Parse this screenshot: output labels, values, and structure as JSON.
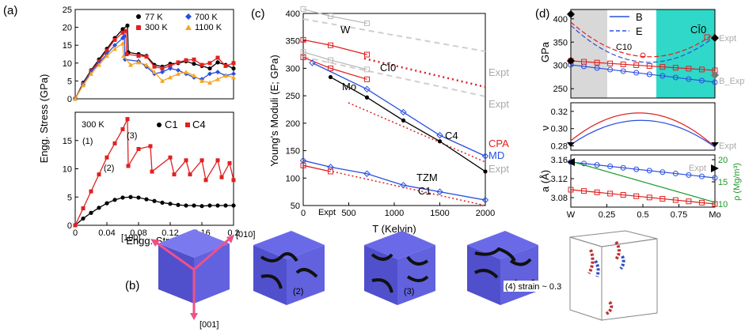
{
  "panels": {
    "a": "(a)",
    "b": "(b)",
    "c": "(c)",
    "d": "(d)"
  },
  "chart_data": [
    {
      "id": "a-top",
      "type": "line",
      "ylabel": "Engg. Stress (GPa)",
      "ylim": [
        0,
        25
      ],
      "yticks": [
        "0",
        "5",
        "10",
        "15",
        "20",
        "25"
      ],
      "xlim": [
        0,
        0.2
      ],
      "legend": [
        {
          "name": "77 K",
          "color": "#000000",
          "marker": "circle"
        },
        {
          "name": "700 K",
          "color": "#2a4fe0",
          "marker": "diamond"
        },
        {
          "name": "300 K",
          "color": "#e02020",
          "marker": "square"
        },
        {
          "name": "1100 K",
          "color": "#f5a623",
          "marker": "triangle"
        }
      ],
      "series": [
        {
          "name": "77 K",
          "color": "#000000",
          "x": [
            0,
            0.01,
            0.02,
            0.03,
            0.04,
            0.05,
            0.06,
            0.066,
            0.067,
            0.08,
            0.09,
            0.1,
            0.11,
            0.12,
            0.13,
            0.14,
            0.15,
            0.16,
            0.17,
            0.18,
            0.19,
            0.2
          ],
          "y": [
            0,
            4.5,
            8,
            11,
            14,
            17,
            19.5,
            20.5,
            13,
            12.5,
            12,
            9.5,
            9,
            9.8,
            10,
            10.5,
            9.8,
            9.2,
            8.5,
            10.2,
            9.5,
            8.5
          ]
        },
        {
          "name": "300 K",
          "color": "#e02020",
          "x": [
            0,
            0.01,
            0.02,
            0.03,
            0.04,
            0.05,
            0.06,
            0.064,
            0.065,
            0.08,
            0.09,
            0.1,
            0.11,
            0.12,
            0.13,
            0.14,
            0.15,
            0.16,
            0.17,
            0.18,
            0.19,
            0.2
          ],
          "y": [
            0,
            4.2,
            7.8,
            10.5,
            13.5,
            16.5,
            18.5,
            19,
            12.5,
            12,
            11.8,
            9,
            8.5,
            9.2,
            10.2,
            10.8,
            11,
            9.5,
            10,
            11.5,
            9.2,
            10
          ]
        },
        {
          "name": "700 K",
          "color": "#2a4fe0",
          "x": [
            0,
            0.01,
            0.02,
            0.03,
            0.04,
            0.05,
            0.06,
            0.062,
            0.063,
            0.08,
            0.09,
            0.1,
            0.11,
            0.12,
            0.13,
            0.14,
            0.15,
            0.16,
            0.17,
            0.18,
            0.19,
            0.2
          ],
          "y": [
            0,
            4,
            7.5,
            10,
            12.5,
            15,
            17,
            17.5,
            11,
            10.5,
            9,
            7,
            7.5,
            8.5,
            8,
            7,
            6,
            5.5,
            7,
            7.5,
            6.5,
            7
          ]
        },
        {
          "name": "1100 K",
          "color": "#f5a623",
          "x": [
            0,
            0.01,
            0.02,
            0.03,
            0.04,
            0.05,
            0.06,
            0.061,
            0.07,
            0.08,
            0.09,
            0.1,
            0.11,
            0.12,
            0.13,
            0.14,
            0.15,
            0.16,
            0.17,
            0.18,
            0.19,
            0.2
          ],
          "y": [
            0,
            3.8,
            7,
            9.5,
            12,
            14,
            15.5,
            12,
            9.5,
            10.2,
            9.5,
            7.5,
            5,
            6,
            7,
            7.5,
            6.5,
            5,
            4.5,
            5.5,
            6.5,
            6
          ]
        }
      ]
    },
    {
      "id": "a-bottom",
      "type": "line",
      "xlabel": "Engg. Strain",
      "ylim": [
        0,
        20
      ],
      "yticks": [
        "0",
        "5",
        "10",
        "15"
      ],
      "xlim": [
        0,
        0.2
      ],
      "xticks": [
        "0",
        "0.04",
        "0.08",
        "0.12",
        "0.16",
        "0.2"
      ],
      "annotation": "300 K",
      "labels": [
        "(1)",
        "(2)",
        "(3)"
      ],
      "legend": [
        {
          "name": "C1",
          "color": "#000000",
          "marker": "circle"
        },
        {
          "name": "C4",
          "color": "#e02020",
          "marker": "square"
        }
      ],
      "series": [
        {
          "name": "C1",
          "color": "#000000",
          "x": [
            0,
            0.01,
            0.02,
            0.03,
            0.04,
            0.05,
            0.06,
            0.07,
            0.08,
            0.09,
            0.1,
            0.11,
            0.12,
            0.13,
            0.14,
            0.15,
            0.16,
            0.17,
            0.18,
            0.19,
            0.2
          ],
          "y": [
            0,
            1.2,
            2.2,
            3.1,
            3.9,
            4.5,
            4.9,
            5,
            4.9,
            4.6,
            4.3,
            4,
            3.8,
            3.6,
            3.5,
            3.5,
            3.4,
            3.5,
            3.5,
            3.5,
            3.5
          ]
        },
        {
          "name": "C4",
          "color": "#e02020",
          "x": [
            0,
            0.01,
            0.02,
            0.03,
            0.04,
            0.05,
            0.06,
            0.066,
            0.067,
            0.08,
            0.095,
            0.097,
            0.12,
            0.125,
            0.14,
            0.145,
            0.16,
            0.165,
            0.18,
            0.185,
            0.195,
            0.2
          ],
          "y": [
            0,
            3,
            6,
            9,
            12,
            14.5,
            17,
            18.8,
            10.5,
            13.5,
            14,
            9.5,
            12,
            9,
            11.5,
            9,
            11.5,
            8,
            11.5,
            8.5,
            11,
            8
          ]
        }
      ]
    },
    {
      "id": "c",
      "type": "line",
      "xlabel": "T (Kelvin)",
      "ylabel": "Young's Moduli (E; GPa)",
      "xlim": [
        0,
        2000
      ],
      "xticks": [
        "0",
        "500",
        "1000",
        "1500",
        "2000"
      ],
      "ylim": [
        50,
        400
      ],
      "yticks": [
        "50",
        "100",
        "150",
        "200",
        "250",
        "300",
        "350",
        "400"
      ],
      "annotations": [
        "W",
        "Mo",
        "CĪ0",
        "C4",
        "TZM",
        "C1",
        "Expt",
        "Expt",
        "Expt",
        "Expt",
        "CPA",
        "MD"
      ],
      "series": [
        {
          "name": "W",
          "color": "#bbbbbb",
          "x": [
            0,
            300,
            700
          ],
          "y": [
            408,
            395,
            382
          ]
        },
        {
          "name": "Mo",
          "color": "#bbbbbb",
          "x": [
            0,
            300,
            700
          ],
          "y": [
            330,
            315,
            298
          ]
        },
        {
          "name": "C1̄0",
          "color": "#e02020",
          "x": [
            0,
            300,
            700
          ],
          "y": [
            352,
            342,
            325
          ]
        },
        {
          "name": "C4",
          "color": "#e02020",
          "x": [
            0,
            300,
            700
          ],
          "y": [
            320,
            300,
            280
          ]
        },
        {
          "name": "MD upper",
          "color": "#2a4fe0",
          "x": [
            100,
            700,
            1100,
            1500,
            2000
          ],
          "y": [
            310,
            262,
            220,
            178,
            140
          ]
        },
        {
          "name": "MD C1",
          "color": "#2a4fe0",
          "x": [
            0,
            300,
            700,
            1100,
            1500,
            2000
          ],
          "y": [
            132,
            120,
            108,
            87,
            75,
            60
          ]
        },
        {
          "name": "CPA C1",
          "color": "#e02020",
          "x": [
            0,
            300
          ],
          "y": [
            123,
            112
          ]
        },
        {
          "name": "TZM Expt",
          "color": "#000000",
          "x": [
            300,
            700,
            1100,
            1500,
            2000
          ],
          "y": [
            284,
            247,
            205,
            167,
            112
          ]
        }
      ]
    },
    {
      "id": "d-top",
      "type": "line",
      "ylabel": "GPa",
      "ylim": [
        230,
        420
      ],
      "yticks": [
        "250",
        "300",
        "350",
        "400"
      ],
      "legend": [
        {
          "name": "B",
          "style": "solid"
        },
        {
          "name": "E",
          "style": "dashed"
        }
      ],
      "annotations": [
        "C10",
        "CĪ0",
        "Expt",
        "B_Expt"
      ]
    },
    {
      "id": "d-mid",
      "type": "line",
      "ylabel": "ν",
      "ylim": [
        0.275,
        0.33
      ],
      "yticks": [
        "0.28",
        "0.30",
        "0.32"
      ],
      "annotations": [
        "Expt"
      ]
    },
    {
      "id": "d-bot",
      "type": "line",
      "ylabel": "a (Å)",
      "ylabel2": "ρ (Mg/m³)",
      "ylim": [
        3.06,
        3.17
      ],
      "yticks": [
        "3.08",
        "3.12",
        "3.16"
      ],
      "y2ticks": [
        "10",
        "15",
        "20"
      ],
      "xticks": [
        "W",
        "0.25",
        "0.5",
        "0.75",
        "Mo"
      ],
      "annotations": [
        "Expt"
      ]
    }
  ],
  "panel_b": {
    "axes_labels": [
      "[100]",
      "[010]",
      "[001]"
    ],
    "snapshots": [
      "(2)",
      "(3)",
      "(4) strain ~ 0.3"
    ]
  },
  "colors": {
    "red": "#e02020",
    "blue": "#2a4fe0",
    "black": "#000000",
    "orange": "#f5a623",
    "gray": "#bbbbbb",
    "green": "#1a9a2a",
    "teal": "#2fd8c8",
    "cube": "#5a5ad8"
  }
}
